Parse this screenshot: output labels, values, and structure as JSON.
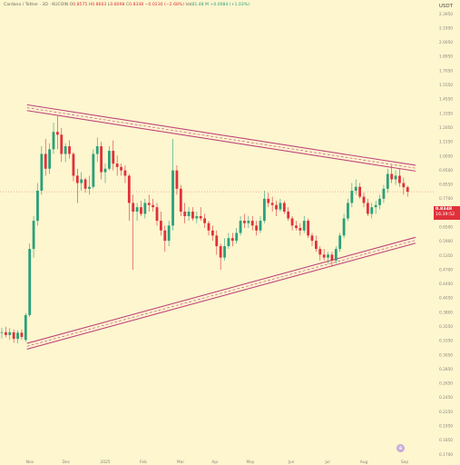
{
  "header": {
    "symbol": "Cardano / Tether · 3D · KUCOIN",
    "open_label": "O",
    "open": "0.8575",
    "high_label": "H",
    "high": "0.8663",
    "low_label": "L",
    "low": "0.8098",
    "close_label": "C",
    "close": "0.8348",
    "change": "−0.0230 (−2.68%)",
    "volume_label": "Vol",
    "volume": "81.48 M",
    "volume_change": "+0.0084 (+1.03%)"
  },
  "price_axis": {
    "unit": "USDT",
    "ticks": [
      "2.3950",
      "2.1950",
      "2.0050",
      "1.8950",
      "1.7050",
      "1.5550",
      "1.4550",
      "1.3350",
      "1.2050",
      "1.1550",
      "1.0050",
      "0.9500",
      "0.8550",
      "0.7700",
      "0.7050",
      "0.6500",
      "0.5900",
      "0.5350",
      "0.4700",
      "0.4400",
      "0.4050",
      "0.3800",
      "0.3550",
      "0.3350",
      "0.3050",
      "0.2850",
      "0.2650",
      "0.2450",
      "0.2250",
      "0.1950",
      "0.1850",
      "0.1700"
    ]
  },
  "time_axis": {
    "labels": [
      "Nov",
      "Dec",
      "2025",
      "Feb",
      "Mar",
      "Apr",
      "May",
      "Jun",
      "Jul",
      "Aug",
      "Sep"
    ]
  },
  "last_price": {
    "value": "0.8348",
    "countdown": "16:39:52",
    "color": "#e0313a"
  },
  "colors": {
    "up": "#2aa07b",
    "down": "#e0313a",
    "band": "#c0457a",
    "background": "#fdf6cf"
  },
  "chart_data": {
    "type": "candlestick",
    "symbol": "Cardano / Tether",
    "interval": "3D",
    "y_scale": "log",
    "ylim": [
      0.17,
      2.5
    ],
    "x_range": [
      "2024-10-24",
      "2025-09-01"
    ],
    "patterns": [
      {
        "type": "upper_trendline_band",
        "x_start": "2024-11-12",
        "y_start": 1.39,
        "x_end": "2025-09-01",
        "y_end": 0.963
      },
      {
        "type": "lower_trendline_band",
        "x_start": "2024-11-12",
        "y_start": 0.327,
        "x_end": "2025-09-01",
        "y_end": 0.622
      }
    ],
    "candles": [
      {
        "t": "2024-10-24",
        "o": 0.355,
        "h": 0.365,
        "l": 0.343,
        "c": 0.356
      },
      {
        "t": "2024-10-27",
        "o": 0.356,
        "h": 0.368,
        "l": 0.345,
        "c": 0.35
      },
      {
        "t": "2024-10-30",
        "o": 0.35,
        "h": 0.365,
        "l": 0.34,
        "c": 0.356
      },
      {
        "t": "2024-11-02",
        "o": 0.356,
        "h": 0.362,
        "l": 0.334,
        "c": 0.342
      },
      {
        "t": "2024-11-05",
        "o": 0.342,
        "h": 0.36,
        "l": 0.333,
        "c": 0.355
      },
      {
        "t": "2024-11-08",
        "o": 0.355,
        "h": 0.362,
        "l": 0.34,
        "c": 0.346
      },
      {
        "t": "2024-11-11",
        "o": 0.34,
        "h": 0.4,
        "l": 0.336,
        "c": 0.395
      },
      {
        "t": "2024-11-14",
        "o": 0.395,
        "h": 0.61,
        "l": 0.39,
        "c": 0.59
      },
      {
        "t": "2024-11-17",
        "o": 0.59,
        "h": 0.72,
        "l": 0.56,
        "c": 0.7
      },
      {
        "t": "2024-11-20",
        "o": 0.7,
        "h": 0.88,
        "l": 0.68,
        "c": 0.84
      },
      {
        "t": "2024-11-23",
        "o": 0.84,
        "h": 1.1,
        "l": 0.82,
        "c": 1.05
      },
      {
        "t": "2024-11-26",
        "o": 1.05,
        "h": 1.15,
        "l": 0.92,
        "c": 0.96
      },
      {
        "t": "2024-11-29",
        "o": 0.96,
        "h": 1.12,
        "l": 0.93,
        "c": 1.08
      },
      {
        "t": "2024-12-02",
        "o": 1.08,
        "h": 1.27,
        "l": 1.05,
        "c": 1.2
      },
      {
        "t": "2024-12-05",
        "o": 1.2,
        "h": 1.32,
        "l": 1.08,
        "c": 1.18
      },
      {
        "t": "2024-12-08",
        "o": 1.18,
        "h": 1.23,
        "l": 1.0,
        "c": 1.05
      },
      {
        "t": "2024-12-11",
        "o": 1.05,
        "h": 1.12,
        "l": 1.0,
        "c": 1.1
      },
      {
        "t": "2024-12-14",
        "o": 1.1,
        "h": 1.14,
        "l": 1.02,
        "c": 1.05
      },
      {
        "t": "2024-12-17",
        "o": 1.05,
        "h": 1.06,
        "l": 0.89,
        "c": 0.92
      },
      {
        "t": "2024-12-20",
        "o": 0.92,
        "h": 0.96,
        "l": 0.78,
        "c": 0.88
      },
      {
        "t": "2024-12-23",
        "o": 0.88,
        "h": 0.94,
        "l": 0.84,
        "c": 0.9
      },
      {
        "t": "2024-12-26",
        "o": 0.9,
        "h": 0.91,
        "l": 0.83,
        "c": 0.85
      },
      {
        "t": "2024-12-29",
        "o": 0.85,
        "h": 0.92,
        "l": 0.82,
        "c": 0.86
      },
      {
        "t": "2025-01-01",
        "o": 0.86,
        "h": 1.08,
        "l": 0.85,
        "c": 1.05
      },
      {
        "t": "2025-01-04",
        "o": 1.05,
        "h": 1.16,
        "l": 1.0,
        "c": 1.1
      },
      {
        "t": "2025-01-07",
        "o": 1.1,
        "h": 1.13,
        "l": 0.9,
        "c": 0.94
      },
      {
        "t": "2025-01-10",
        "o": 0.94,
        "h": 0.99,
        "l": 0.88,
        "c": 0.96
      },
      {
        "t": "2025-01-13",
        "o": 0.96,
        "h": 1.1,
        "l": 0.95,
        "c": 1.07
      },
      {
        "t": "2025-01-16",
        "o": 1.07,
        "h": 1.14,
        "l": 0.95,
        "c": 0.99
      },
      {
        "t": "2025-01-19",
        "o": 0.99,
        "h": 1.04,
        "l": 0.92,
        "c": 0.97
      },
      {
        "t": "2025-01-22",
        "o": 0.97,
        "h": 0.99,
        "l": 0.92,
        "c": 0.95
      },
      {
        "t": "2025-01-25",
        "o": 0.95,
        "h": 0.98,
        "l": 0.88,
        "c": 0.92
      },
      {
        "t": "2025-01-28",
        "o": 0.92,
        "h": 0.93,
        "l": 0.7,
        "c": 0.78
      },
      {
        "t": "2025-01-31",
        "o": 0.78,
        "h": 0.82,
        "l": 0.52,
        "c": 0.74
      },
      {
        "t": "2025-02-03",
        "o": 0.74,
        "h": 0.78,
        "l": 0.7,
        "c": 0.76
      },
      {
        "t": "2025-02-06",
        "o": 0.76,
        "h": 0.79,
        "l": 0.72,
        "c": 0.73
      },
      {
        "t": "2025-02-09",
        "o": 0.73,
        "h": 0.8,
        "l": 0.71,
        "c": 0.78
      },
      {
        "t": "2025-02-12",
        "o": 0.78,
        "h": 0.82,
        "l": 0.74,
        "c": 0.77
      },
      {
        "t": "2025-02-15",
        "o": 0.77,
        "h": 0.8,
        "l": 0.74,
        "c": 0.76
      },
      {
        "t": "2025-02-18",
        "o": 0.76,
        "h": 0.78,
        "l": 0.68,
        "c": 0.7
      },
      {
        "t": "2025-02-21",
        "o": 0.7,
        "h": 0.74,
        "l": 0.64,
        "c": 0.66
      },
      {
        "t": "2025-02-24",
        "o": 0.66,
        "h": 0.68,
        "l": 0.58,
        "c": 0.62
      },
      {
        "t": "2025-02-27",
        "o": 0.62,
        "h": 0.7,
        "l": 0.6,
        "c": 0.68
      },
      {
        "t": "2025-03-02",
        "o": 0.68,
        "h": 1.15,
        "l": 0.66,
        "c": 0.95
      },
      {
        "t": "2025-03-05",
        "o": 0.95,
        "h": 0.98,
        "l": 0.82,
        "c": 0.85
      },
      {
        "t": "2025-03-08",
        "o": 0.85,
        "h": 0.87,
        "l": 0.72,
        "c": 0.74
      },
      {
        "t": "2025-03-11",
        "o": 0.74,
        "h": 0.78,
        "l": 0.69,
        "c": 0.72
      },
      {
        "t": "2025-03-14",
        "o": 0.72,
        "h": 0.76,
        "l": 0.7,
        "c": 0.74
      },
      {
        "t": "2025-03-17",
        "o": 0.74,
        "h": 0.76,
        "l": 0.7,
        "c": 0.71
      },
      {
        "t": "2025-03-20",
        "o": 0.71,
        "h": 0.74,
        "l": 0.69,
        "c": 0.72
      },
      {
        "t": "2025-03-23",
        "o": 0.72,
        "h": 0.76,
        "l": 0.7,
        "c": 0.71
      },
      {
        "t": "2025-03-26",
        "o": 0.71,
        "h": 0.73,
        "l": 0.67,
        "c": 0.69
      },
      {
        "t": "2025-03-29",
        "o": 0.69,
        "h": 0.7,
        "l": 0.64,
        "c": 0.66
      },
      {
        "t": "2025-04-01",
        "o": 0.66,
        "h": 0.68,
        "l": 0.62,
        "c": 0.64
      },
      {
        "t": "2025-04-04",
        "o": 0.64,
        "h": 0.66,
        "l": 0.57,
        "c": 0.6
      },
      {
        "t": "2025-04-07",
        "o": 0.6,
        "h": 0.61,
        "l": 0.52,
        "c": 0.56
      },
      {
        "t": "2025-04-10",
        "o": 0.56,
        "h": 0.63,
        "l": 0.55,
        "c": 0.6
      },
      {
        "t": "2025-04-13",
        "o": 0.6,
        "h": 0.65,
        "l": 0.59,
        "c": 0.63
      },
      {
        "t": "2025-04-16",
        "o": 0.63,
        "h": 0.65,
        "l": 0.6,
        "c": 0.62
      },
      {
        "t": "2025-04-19",
        "o": 0.62,
        "h": 0.67,
        "l": 0.61,
        "c": 0.65
      },
      {
        "t": "2025-04-22",
        "o": 0.65,
        "h": 0.72,
        "l": 0.64,
        "c": 0.7
      },
      {
        "t": "2025-04-25",
        "o": 0.7,
        "h": 0.73,
        "l": 0.67,
        "c": 0.69
      },
      {
        "t": "2025-04-28",
        "o": 0.69,
        "h": 0.72,
        "l": 0.67,
        "c": 0.7
      },
      {
        "t": "2025-05-01",
        "o": 0.7,
        "h": 0.72,
        "l": 0.66,
        "c": 0.68
      },
      {
        "t": "2025-05-04",
        "o": 0.68,
        "h": 0.7,
        "l": 0.64,
        "c": 0.66
      },
      {
        "t": "2025-05-07",
        "o": 0.66,
        "h": 0.72,
        "l": 0.65,
        "c": 0.7
      },
      {
        "t": "2025-05-10",
        "o": 0.7,
        "h": 0.84,
        "l": 0.69,
        "c": 0.8
      },
      {
        "t": "2025-05-13",
        "o": 0.8,
        "h": 0.83,
        "l": 0.76,
        "c": 0.78
      },
      {
        "t": "2025-05-16",
        "o": 0.78,
        "h": 0.81,
        "l": 0.74,
        "c": 0.77
      },
      {
        "t": "2025-05-19",
        "o": 0.77,
        "h": 0.79,
        "l": 0.72,
        "c": 0.75
      },
      {
        "t": "2025-05-22",
        "o": 0.75,
        "h": 0.8,
        "l": 0.74,
        "c": 0.78
      },
      {
        "t": "2025-05-25",
        "o": 0.78,
        "h": 0.79,
        "l": 0.73,
        "c": 0.74
      },
      {
        "t": "2025-05-28",
        "o": 0.74,
        "h": 0.76,
        "l": 0.7,
        "c": 0.71
      },
      {
        "t": "2025-05-31",
        "o": 0.71,
        "h": 0.72,
        "l": 0.66,
        "c": 0.68
      },
      {
        "t": "2025-06-03",
        "o": 0.68,
        "h": 0.7,
        "l": 0.66,
        "c": 0.67
      },
      {
        "t": "2025-06-06",
        "o": 0.67,
        "h": 0.69,
        "l": 0.64,
        "c": 0.66
      },
      {
        "t": "2025-06-09",
        "o": 0.66,
        "h": 0.72,
        "l": 0.65,
        "c": 0.7
      },
      {
        "t": "2025-06-12",
        "o": 0.7,
        "h": 0.71,
        "l": 0.63,
        "c": 0.64
      },
      {
        "t": "2025-06-15",
        "o": 0.64,
        "h": 0.65,
        "l": 0.6,
        "c": 0.62
      },
      {
        "t": "2025-06-18",
        "o": 0.62,
        "h": 0.64,
        "l": 0.58,
        "c": 0.59
      },
      {
        "t": "2025-06-21",
        "o": 0.59,
        "h": 0.6,
        "l": 0.55,
        "c": 0.57
      },
      {
        "t": "2025-06-24",
        "o": 0.57,
        "h": 0.59,
        "l": 0.55,
        "c": 0.56
      },
      {
        "t": "2025-06-27",
        "o": 0.56,
        "h": 0.58,
        "l": 0.54,
        "c": 0.57
      },
      {
        "t": "2025-06-30",
        "o": 0.57,
        "h": 0.58,
        "l": 0.53,
        "c": 0.55
      },
      {
        "t": "2025-07-03",
        "o": 0.55,
        "h": 0.6,
        "l": 0.54,
        "c": 0.59
      },
      {
        "t": "2025-07-06",
        "o": 0.59,
        "h": 0.65,
        "l": 0.58,
        "c": 0.64
      },
      {
        "t": "2025-07-09",
        "o": 0.64,
        "h": 0.73,
        "l": 0.63,
        "c": 0.71
      },
      {
        "t": "2025-07-12",
        "o": 0.71,
        "h": 0.8,
        "l": 0.7,
        "c": 0.78
      },
      {
        "t": "2025-07-15",
        "o": 0.78,
        "h": 0.88,
        "l": 0.76,
        "c": 0.84
      },
      {
        "t": "2025-07-18",
        "o": 0.84,
        "h": 0.9,
        "l": 0.82,
        "c": 0.86
      },
      {
        "t": "2025-07-21",
        "o": 0.86,
        "h": 0.88,
        "l": 0.8,
        "c": 0.81
      },
      {
        "t": "2025-07-24",
        "o": 0.81,
        "h": 0.83,
        "l": 0.76,
        "c": 0.78
      },
      {
        "t": "2025-07-27",
        "o": 0.78,
        "h": 0.8,
        "l": 0.72,
        "c": 0.73
      },
      {
        "t": "2025-07-30",
        "o": 0.73,
        "h": 0.78,
        "l": 0.71,
        "c": 0.76
      },
      {
        "t": "2025-08-02",
        "o": 0.76,
        "h": 0.79,
        "l": 0.73,
        "c": 0.77
      },
      {
        "t": "2025-08-05",
        "o": 0.77,
        "h": 0.82,
        "l": 0.75,
        "c": 0.8
      },
      {
        "t": "2025-08-08",
        "o": 0.8,
        "h": 0.87,
        "l": 0.78,
        "c": 0.85
      },
      {
        "t": "2025-08-11",
        "o": 0.85,
        "h": 0.96,
        "l": 0.83,
        "c": 0.93
      },
      {
        "t": "2025-08-14",
        "o": 0.93,
        "h": 0.98,
        "l": 0.88,
        "c": 0.9
      },
      {
        "t": "2025-08-17",
        "o": 0.9,
        "h": 0.95,
        "l": 0.87,
        "c": 0.92
      },
      {
        "t": "2025-08-20",
        "o": 0.92,
        "h": 0.96,
        "l": 0.86,
        "c": 0.88
      },
      {
        "t": "2025-08-23",
        "o": 0.88,
        "h": 0.91,
        "l": 0.82,
        "c": 0.858
      },
      {
        "t": "2025-08-26",
        "o": 0.858,
        "h": 0.866,
        "l": 0.81,
        "c": 0.835
      }
    ]
  }
}
